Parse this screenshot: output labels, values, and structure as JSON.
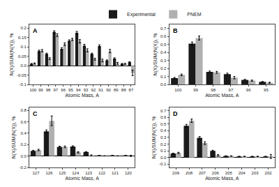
{
  "chart_data": [
    {
      "type": "bar",
      "categories": [
        100,
        99,
        98,
        97,
        96,
        95,
        94,
        93,
        92,
        91,
        90,
        89,
        88,
        87
      ],
      "series": [
        {
          "name": "Experimental",
          "color": "#1a1a1a",
          "values": [
            0.01,
            0.078,
            0.063,
            0.18,
            0.09,
            0.133,
            0.175,
            0.107,
            0.063,
            0.105,
            0.028,
            0.038,
            0.01,
            0.018
          ],
          "errors": [
            0.002,
            0.005,
            0.004,
            0.006,
            0.006,
            0.005,
            0.008,
            0.007,
            0.004,
            0.006,
            0.003,
            0.004,
            0.002,
            0.003
          ]
        },
        {
          "name": "PNEM",
          "color": "#b0b0b0",
          "values": [
            0.012,
            0.08,
            0.038,
            0.163,
            0.115,
            0.14,
            0.13,
            0.082,
            0.035,
            0.028,
            0.078,
            0.013,
            0.01,
            -0.038
          ],
          "errors": [
            0.003,
            0.006,
            0.005,
            0.007,
            0.007,
            0.006,
            0.009,
            0.008,
            0.005,
            0.007,
            0.009,
            0.005,
            0.003,
            0.015
          ]
        }
      ],
      "ylim": [
        -0.1,
        0.22
      ],
      "yticks": [
        -0.1,
        -0.05,
        {
          "value": 0,
          "label": "0.0"
        },
        0.05,
        0.1,
        0.15,
        0.2
      ],
      "xlabel": "Atomic Mass, A",
      "ylabel": "N(X)/SUM(N(X)), %",
      "annotations": [
        "A"
      ],
      "grid": false,
      "legend": "top"
    },
    {
      "type": "bar",
      "categories": [
        100,
        99,
        98,
        97,
        96,
        95
      ],
      "series": [
        {
          "name": "Experimental",
          "color": "#1a1a1a",
          "values": [
            0.08,
            0.51,
            0.158,
            0.13,
            0.058,
            0.033
          ],
          "errors": [
            0.008,
            0.02,
            0.01,
            0.012,
            0.006,
            0.005
          ]
        },
        {
          "name": "PNEM",
          "color": "#b0b0b0",
          "values": [
            0.12,
            0.58,
            0.152,
            0.085,
            0.048,
            0.022
          ],
          "errors": [
            0.01,
            0.025,
            0.012,
            0.015,
            0.007,
            0.006
          ]
        }
      ],
      "ylim": [
        0.0,
        0.75
      ],
      "yticks": [
        {
          "value": 0,
          "label": "0.0"
        },
        0.1,
        0.2,
        0.3,
        0.4,
        0.5,
        0.6,
        0.7
      ],
      "xlabel": "Atomic Mass, A",
      "ylabel": "N(X)/SUM(N(X)), %",
      "annotations": [
        "B"
      ],
      "grid": false,
      "legend": "top"
    },
    {
      "type": "bar",
      "categories": [
        127,
        126,
        125,
        124,
        123,
        122,
        121,
        120
      ],
      "series": [
        {
          "name": "Experimental",
          "color": "#1a1a1a",
          "values": [
            0.09,
            0.43,
            0.16,
            0.165,
            0.07,
            0.01,
            0.01,
            0.01
          ],
          "errors": [
            0.01,
            0.025,
            0.012,
            0.013,
            0.007,
            0.002,
            0.002,
            0.002
          ]
        },
        {
          "name": "PNEM",
          "color": "#b0b0b0",
          "values": [
            0.105,
            0.615,
            0.16,
            0.065,
            0.01,
            0.003,
            0.003,
            0.003
          ],
          "errors": [
            0.012,
            0.085,
            0.015,
            0.01,
            0.01,
            0.003,
            0.003,
            0.01
          ]
        }
      ],
      "ylim": [
        -0.2,
        0.85
      ],
      "yticks": [
        -0.2,
        {
          "value": 0,
          "label": "0.0"
        },
        0.2,
        0.4,
        0.6,
        0.8
      ],
      "xlabel": "Atomic Mass, A",
      "ylabel": "N(X)/SUM(N(X)), %",
      "annotations": [
        "C"
      ],
      "grid": false,
      "legend": "top"
    },
    {
      "type": "bar",
      "categories": [
        209,
        208,
        207,
        206,
        205,
        204,
        203,
        202
      ],
      "series": [
        {
          "name": "Experimental",
          "color": "#1a1a1a",
          "values": [
            0.058,
            0.475,
            0.295,
            0.097,
            0.022,
            0.015,
            0.015,
            0.015
          ],
          "errors": [
            0.007,
            0.02,
            0.018,
            0.01,
            0.003,
            0.003,
            0.003,
            0.003
          ]
        },
        {
          "name": "PNEM",
          "color": "#b0b0b0",
          "values": [
            0.068,
            0.55,
            0.215,
            0.032,
            0.022,
            0.015,
            0.015,
            0.015
          ],
          "errors": [
            0.009,
            0.025,
            0.02,
            0.012,
            0.003,
            0.003,
            0.003,
            0.03
          ]
        }
      ],
      "ylim": [
        -0.15,
        0.75
      ],
      "yticks": [
        -0.1,
        {
          "value": 0,
          "label": "0.0"
        },
        0.1,
        0.2,
        0.3,
        0.4,
        0.5,
        0.6,
        0.7
      ],
      "xlabel": "Atomic Mass, A",
      "ylabel": "N(X)/SUM(N(X)), %",
      "annotations": [
        "D"
      ],
      "grid": false,
      "legend": "top"
    }
  ]
}
